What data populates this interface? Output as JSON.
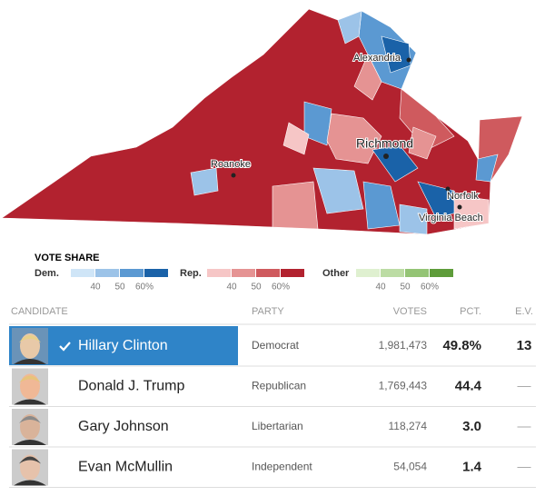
{
  "map": {
    "labels": [
      "Alexandria",
      "Richmond",
      "Roanoke",
      "Norfolk",
      "Virginia Beach"
    ]
  },
  "legend": {
    "title": "VOTE SHARE",
    "groups": [
      {
        "name": "Dem.",
        "colors": [
          "#cfe5f7",
          "#9cc3e8",
          "#5b99d2",
          "#1a62a8"
        ],
        "ticks": [
          "40",
          "50",
          "60%"
        ]
      },
      {
        "name": "Rep.",
        "colors": [
          "#f6c6c6",
          "#e59393",
          "#cf5a5e",
          "#b2222f"
        ],
        "ticks": [
          "40",
          "50",
          "60%"
        ]
      },
      {
        "name": "Other",
        "colors": [
          "#dff0d0",
          "#bcdca4",
          "#94c475",
          "#5e9c3a"
        ],
        "ticks": [
          "40",
          "50",
          "60%"
        ]
      }
    ]
  },
  "table": {
    "columns": [
      "CANDIDATE",
      "PARTY",
      "VOTES",
      "PCT.",
      "E.V."
    ],
    "rows": [
      [
        "Hillary Clinton",
        "Democrat",
        "1,981,473",
        "49.8%",
        "13"
      ],
      [
        "Donald J. Trump",
        "Republican",
        "1,769,443",
        "44.4",
        "—"
      ],
      [
        "Gary Johnson",
        "Libertarian",
        "118,274",
        "3.0",
        "—"
      ],
      [
        "Evan McMullin",
        "Independent",
        "54,054",
        "1.4",
        "—"
      ]
    ]
  }
}
